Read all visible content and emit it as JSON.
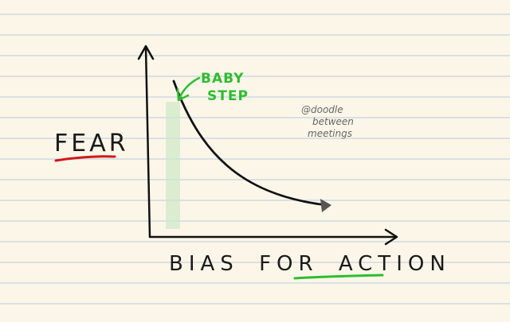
{
  "y_axis_label": "FEAR",
  "x_axis_label": [
    "BIAS",
    "FOR",
    "ACTION"
  ],
  "annotation": [
    "BABY",
    "STEP"
  ],
  "credit": [
    "@doodle",
    "between",
    "meetings"
  ]
}
